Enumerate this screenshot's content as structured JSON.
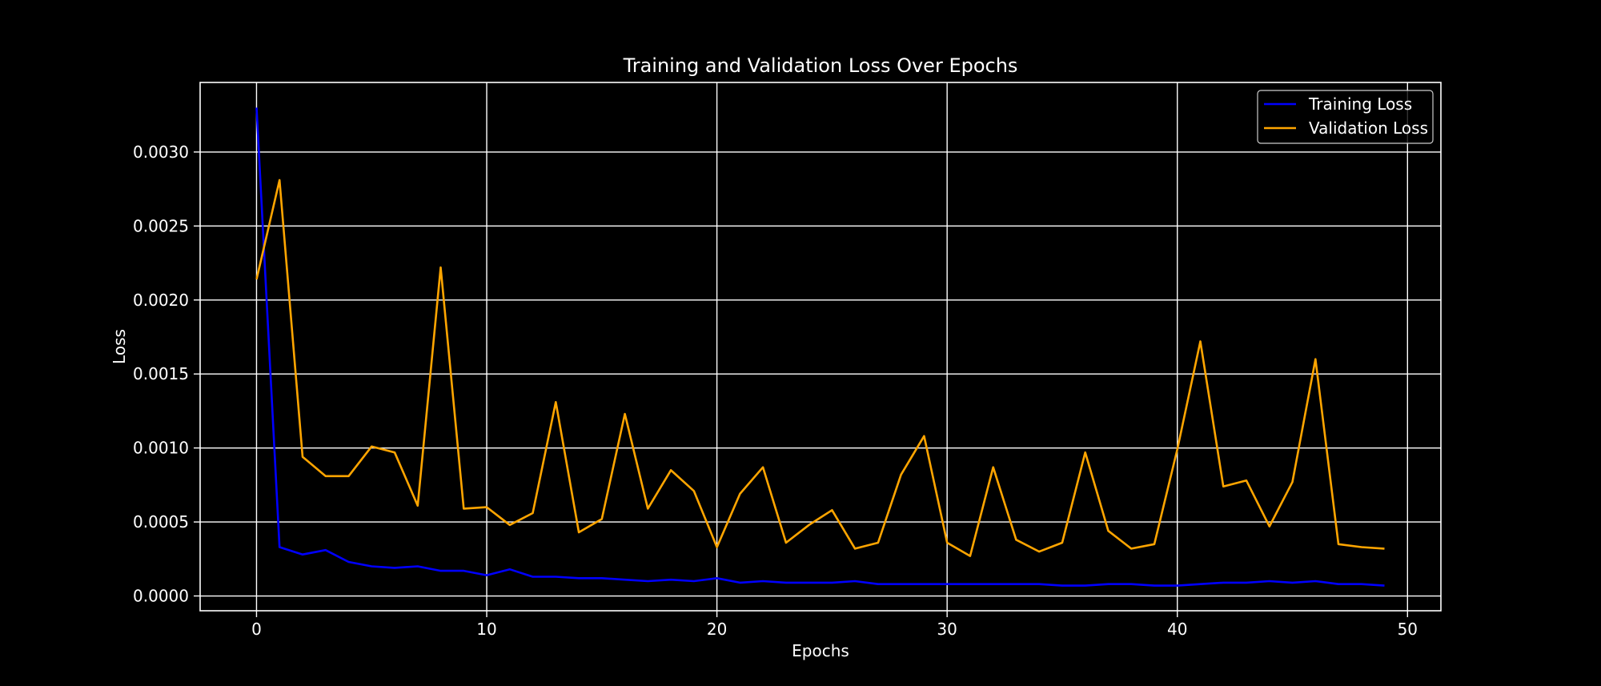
{
  "chart_data": {
    "type": "line",
    "title": "Training and Validation Loss Over Epochs",
    "xlabel": "Epochs",
    "ylabel": "Loss",
    "xlim": [
      -2.45,
      51.45
    ],
    "ylim": [
      -0.0001,
      0.00347
    ],
    "xticks": [
      0,
      10,
      20,
      30,
      40,
      50
    ],
    "xtick_labels": [
      "0",
      "10",
      "20",
      "30",
      "40",
      "50"
    ],
    "yticks": [
      0.0,
      0.0005,
      0.001,
      0.0015,
      0.002,
      0.0025,
      0.003
    ],
    "ytick_labels": [
      "0.0000",
      "0.0005",
      "0.0010",
      "0.0015",
      "0.0020",
      "0.0025",
      "0.0030"
    ],
    "grid": true,
    "legend_position": "top-right",
    "x": [
      0,
      1,
      2,
      3,
      4,
      5,
      6,
      7,
      8,
      9,
      10,
      11,
      12,
      13,
      14,
      15,
      16,
      17,
      18,
      19,
      20,
      21,
      22,
      23,
      24,
      25,
      26,
      27,
      28,
      29,
      30,
      31,
      32,
      33,
      34,
      35,
      36,
      37,
      38,
      39,
      40,
      41,
      42,
      43,
      44,
      45,
      46,
      47,
      48,
      49
    ],
    "series": [
      {
        "name": "Training Loss",
        "color": "#0000ff",
        "values": [
          0.0033,
          0.00033,
          0.00028,
          0.00031,
          0.00023,
          0.0002,
          0.00019,
          0.0002,
          0.00017,
          0.00017,
          0.00014,
          0.00018,
          0.00013,
          0.00013,
          0.00012,
          0.00012,
          0.00011,
          0.0001,
          0.00011,
          0.0001,
          0.00012,
          9e-05,
          0.0001,
          9e-05,
          9e-05,
          9e-05,
          0.0001,
          8e-05,
          8e-05,
          8e-05,
          8e-05,
          8e-05,
          8e-05,
          8e-05,
          8e-05,
          7e-05,
          7e-05,
          8e-05,
          8e-05,
          7e-05,
          7e-05,
          8e-05,
          9e-05,
          9e-05,
          0.0001,
          9e-05,
          0.0001,
          8e-05,
          8e-05,
          7e-05
        ]
      },
      {
        "name": "Validation Loss",
        "color": "#ffa500",
        "values": [
          0.00214,
          0.00281,
          0.00094,
          0.00081,
          0.00081,
          0.00101,
          0.00097,
          0.00061,
          0.00222,
          0.00059,
          0.0006,
          0.00048,
          0.00056,
          0.00131,
          0.00043,
          0.00052,
          0.00123,
          0.00059,
          0.00085,
          0.00071,
          0.00033,
          0.00069,
          0.00087,
          0.00036,
          0.00048,
          0.00058,
          0.00032,
          0.00036,
          0.00082,
          0.00108,
          0.00036,
          0.00027,
          0.00087,
          0.00038,
          0.0003,
          0.00036,
          0.00097,
          0.00044,
          0.00032,
          0.00035,
          0.00099,
          0.00172,
          0.00074,
          0.00078,
          0.00047,
          0.00077,
          0.0016,
          0.00035,
          0.00033,
          0.00032
        ]
      }
    ]
  }
}
